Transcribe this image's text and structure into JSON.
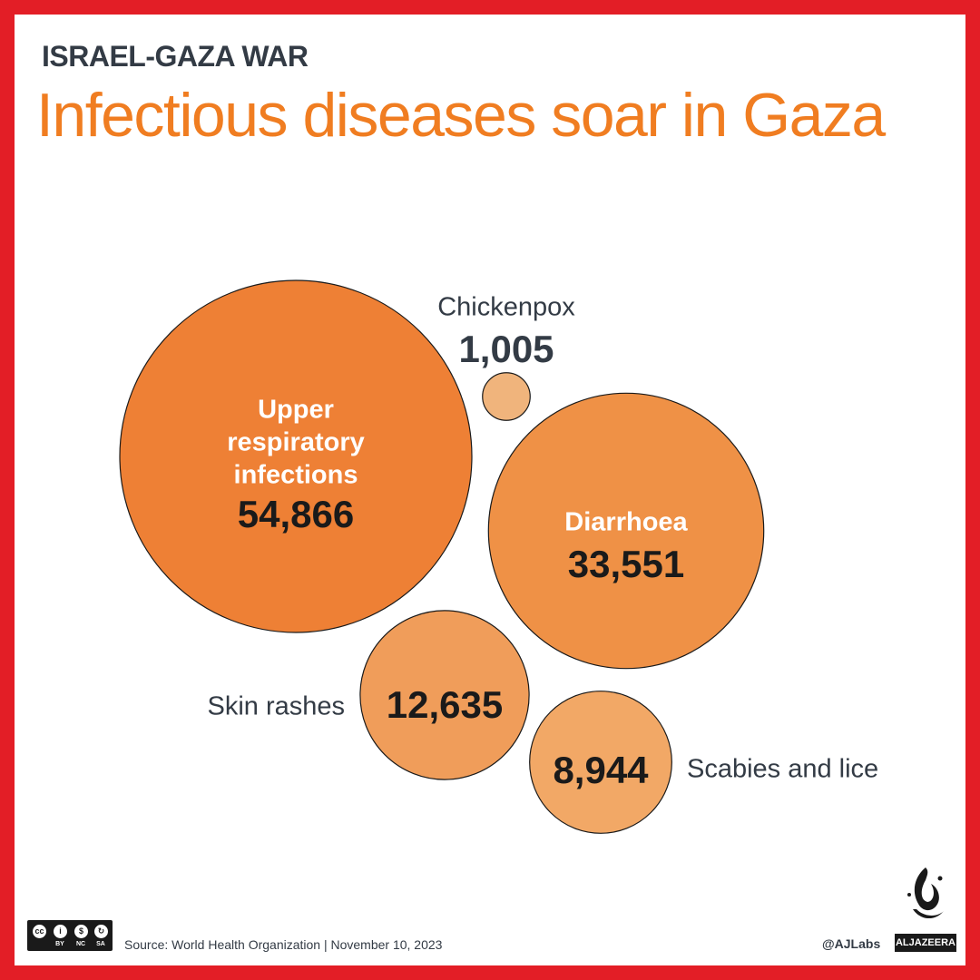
{
  "header": {
    "kicker": "ISRAEL-GAZA WAR",
    "title": "Infectious diseases soar in Gaza"
  },
  "chart_data": {
    "type": "bubble",
    "unit": "cases",
    "items": [
      {
        "name": "Upper respiratory infections",
        "value": 54866,
        "label": "54,866",
        "color": "#ee8035"
      },
      {
        "name": "Diarrhoea",
        "value": 33551,
        "label": "33,551",
        "color": "#ef9146"
      },
      {
        "name": "Skin rashes",
        "value": 12635,
        "label": "12,635",
        "color": "#f09d5a"
      },
      {
        "name": "Scabies and lice",
        "value": 8944,
        "label": "8,944",
        "color": "#f2a866"
      },
      {
        "name": "Chickenpox",
        "value": 1005,
        "label": "1,005",
        "color": "#f0b47c"
      }
    ]
  },
  "footer": {
    "license": [
      "BY",
      "NC",
      "SA"
    ],
    "source": "Source:  World Health Organization  |  November 10, 2023",
    "handle": "@AJLabs",
    "brand": "ALJAZEERA"
  },
  "colors": {
    "border": "#e31e26",
    "title": "#f07d21",
    "text_dark": "#333b45"
  }
}
